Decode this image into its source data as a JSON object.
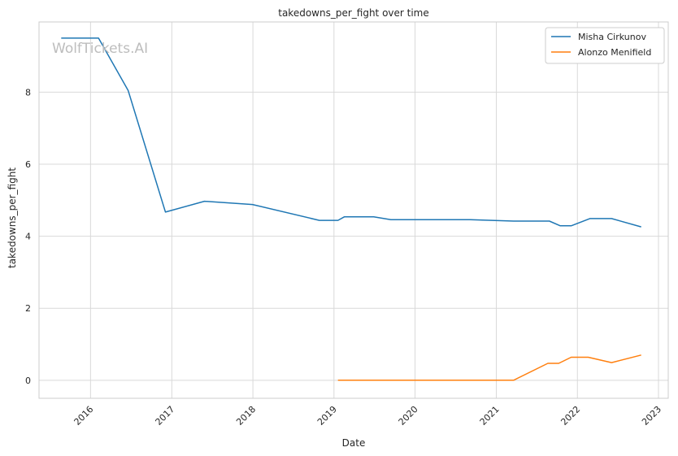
{
  "watermark": "WolfTickets.AI",
  "chart_data": {
    "type": "line",
    "title": "takedowns_per_fight over time",
    "xlabel": "Date",
    "ylabel": "takedowns_per_fight",
    "x_ticks": [
      "2016",
      "2017",
      "2018",
      "2019",
      "2020",
      "2021",
      "2022",
      "2023"
    ],
    "y_ticks": [
      0,
      2,
      4,
      6,
      8
    ],
    "xlim": [
      "2015-05-14",
      "2023-02-14"
    ],
    "ylim": [
      -0.5,
      9.95
    ],
    "grid": true,
    "legend_position": "top-right",
    "series": [
      {
        "name": "Misha Cirkunov",
        "color": "#1f77b4",
        "points": [
          [
            "2015-08-22",
            9.5
          ],
          [
            "2016-02-06",
            9.5
          ],
          [
            "2016-06-18",
            8.05
          ],
          [
            "2016-12-03",
            4.67
          ],
          [
            "2017-05-28",
            4.97
          ],
          [
            "2017-12-30",
            4.88
          ],
          [
            "2018-10-27",
            4.44
          ],
          [
            "2019-01-19",
            4.44
          ],
          [
            "2019-02-17",
            4.54
          ],
          [
            "2019-06-29",
            4.54
          ],
          [
            "2019-09-14",
            4.46
          ],
          [
            "2020-09-05",
            4.46
          ],
          [
            "2021-03-20",
            4.42
          ],
          [
            "2021-08-28",
            4.42
          ],
          [
            "2021-10-16",
            4.29
          ],
          [
            "2021-12-04",
            4.29
          ],
          [
            "2022-02-26",
            4.49
          ],
          [
            "2022-06-04",
            4.49
          ],
          [
            "2022-10-15",
            4.26
          ]
        ]
      },
      {
        "name": "Alonzo Menifield",
        "color": "#ff7f0e",
        "points": [
          [
            "2019-01-19",
            0
          ],
          [
            "2021-03-20",
            0
          ],
          [
            "2021-08-21",
            0.47
          ],
          [
            "2021-10-09",
            0.47
          ],
          [
            "2021-12-04",
            0.64
          ],
          [
            "2022-02-19",
            0.64
          ],
          [
            "2022-06-04",
            0.49
          ],
          [
            "2022-10-15",
            0.7
          ]
        ]
      }
    ]
  }
}
